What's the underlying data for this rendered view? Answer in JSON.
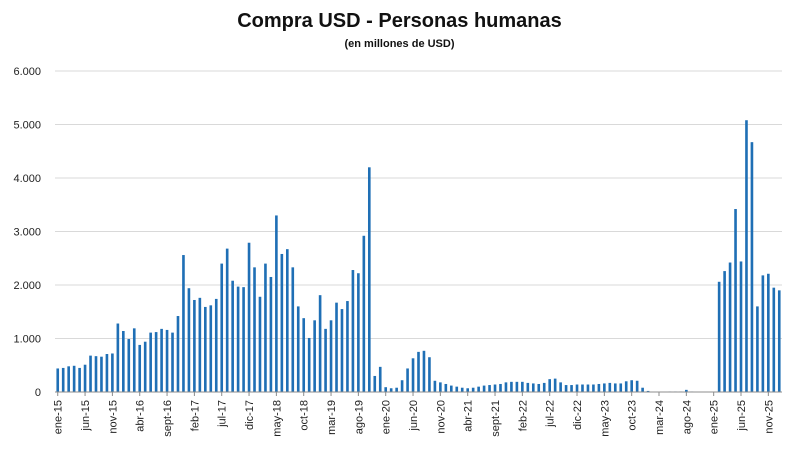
{
  "chart_data": {
    "type": "bar",
    "title": "Compra USD - Personas humanas",
    "subtitle": "(en millones de USD)",
    "xlabel": "",
    "ylabel": "",
    "ylim": [
      0,
      6000
    ],
    "yticks": [
      {
        "value": 0,
        "label": "0"
      },
      {
        "value": 1000,
        "label": "1.000"
      },
      {
        "value": 2000,
        "label": "2.000"
      },
      {
        "value": 3000,
        "label": "3.000"
      },
      {
        "value": 4000,
        "label": "4.000"
      },
      {
        "value": 5000,
        "label": "5.000"
      },
      {
        "value": 6000,
        "label": "6.000"
      }
    ],
    "xticks": [
      {
        "index": 0,
        "label": "ene-15"
      },
      {
        "index": 5,
        "label": "jun-15"
      },
      {
        "index": 10,
        "label": "nov-15"
      },
      {
        "index": 15,
        "label": "abr-16"
      },
      {
        "index": 20,
        "label": "sept-16"
      },
      {
        "index": 25,
        "label": "feb-17"
      },
      {
        "index": 30,
        "label": "jul-17"
      },
      {
        "index": 35,
        "label": "dic-17"
      },
      {
        "index": 40,
        "label": "may-18"
      },
      {
        "index": 45,
        "label": "oct-18"
      },
      {
        "index": 50,
        "label": "mar-19"
      },
      {
        "index": 55,
        "label": "ago-19"
      },
      {
        "index": 60,
        "label": "ene-20"
      },
      {
        "index": 65,
        "label": "jun-20"
      },
      {
        "index": 70,
        "label": "nov-20"
      },
      {
        "index": 75,
        "label": "abr-21"
      },
      {
        "index": 80,
        "label": "sept-21"
      },
      {
        "index": 85,
        "label": "feb-22"
      },
      {
        "index": 90,
        "label": "jul-22"
      },
      {
        "index": 95,
        "label": "dic-22"
      },
      {
        "index": 100,
        "label": "may-23"
      },
      {
        "index": 105,
        "label": "oct-23"
      },
      {
        "index": 110,
        "label": "mar-24"
      },
      {
        "index": 115,
        "label": "ago-24"
      },
      {
        "index": 120,
        "label": "ene-25"
      },
      {
        "index": 125,
        "label": "jun-25"
      },
      {
        "index": 130,
        "label": "nov-25"
      }
    ],
    "grid": true,
    "legend": "none",
    "bar_color": "#1f6fb5",
    "values": [
      440,
      450,
      480,
      490,
      450,
      510,
      680,
      670,
      660,
      710,
      720,
      1280,
      1140,
      990,
      1190,
      880,
      940,
      1110,
      1120,
      1180,
      1160,
      1110,
      1420,
      2560,
      1940,
      1720,
      1760,
      1590,
      1620,
      1740,
      2400,
      2680,
      2080,
      1970,
      1960,
      2790,
      2330,
      1780,
      2400,
      2150,
      3300,
      2580,
      2670,
      2330,
      1600,
      1380,
      1010,
      1340,
      1810,
      1180,
      1340,
      1670,
      1550,
      1700,
      2280,
      2220,
      2920,
      4200,
      300,
      470,
      90,
      70,
      80,
      220,
      440,
      630,
      750,
      770,
      650,
      210,
      180,
      150,
      120,
      100,
      80,
      70,
      80,
      100,
      120,
      130,
      140,
      150,
      180,
      190,
      190,
      190,
      170,
      160,
      150,
      170,
      240,
      250,
      180,
      130,
      130,
      140,
      140,
      140,
      140,
      150,
      160,
      170,
      160,
      160,
      200,
      220,
      210,
      80,
      20,
      5,
      5,
      5,
      10,
      10,
      10,
      40,
      10,
      5,
      5,
      5,
      5,
      2060,
      2260,
      2420,
      3420,
      2440,
      5080,
      4670,
      1600,
      2180,
      2210,
      1950,
      1900
    ]
  }
}
